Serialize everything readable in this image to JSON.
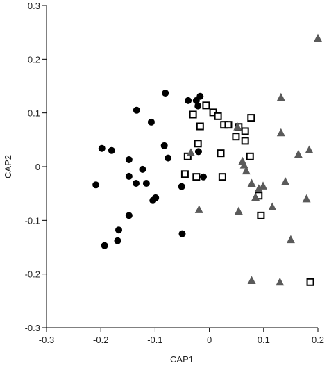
{
  "chart_data": {
    "type": "scatter",
    "x_label": "CAP1",
    "y_label": "CAP2",
    "xlim": [
      -0.3,
      0.2
    ],
    "xticks": [
      -0.3,
      -0.2,
      -0.1,
      0,
      0.1,
      0.2
    ],
    "ylim": [
      -0.3,
      0.3
    ],
    "yticks": [
      -0.3,
      -0.2,
      -0.1,
      0,
      0.1,
      0.2,
      0.3
    ],
    "grid": false,
    "series": [
      {
        "color": "#000000",
        "marker": "circle",
        "x": [
          -0.081,
          -0.134,
          -0.107,
          -0.198,
          -0.18,
          -0.148,
          -0.083,
          -0.076,
          -0.209,
          -0.148,
          -0.123,
          -0.135,
          -0.116,
          -0.099,
          -0.104,
          -0.148,
          -0.167,
          -0.169,
          -0.193,
          -0.051,
          -0.04,
          -0.05,
          -0.039,
          -0.024,
          -0.017,
          -0.021,
          -0.02,
          -0.011
        ],
        "y": [
          0.137,
          0.105,
          0.083,
          0.034,
          0.03,
          0.013,
          0.039,
          0.016,
          -0.034,
          -0.018,
          -0.005,
          -0.031,
          -0.031,
          -0.058,
          -0.063,
          -0.091,
          -0.118,
          -0.138,
          -0.147,
          -0.037,
          0.019,
          -0.125,
          0.123,
          0.123,
          0.131,
          0.113,
          0.028,
          -0.019
        ]
      },
      {
        "color": "#000000",
        "marker": "open-square",
        "x": [
          -0.006,
          -0.03,
          -0.017,
          0.007,
          0.016,
          0.027,
          0.035,
          0.054,
          0.049,
          0.066,
          0.066,
          0.077,
          0.075,
          -0.021,
          -0.04,
          0.021,
          -0.045,
          -0.024,
          0.024,
          0.091,
          0.095,
          0.186
        ],
        "y": [
          0.114,
          0.097,
          0.075,
          0.101,
          0.094,
          0.078,
          0.078,
          0.074,
          0.056,
          0.066,
          0.048,
          0.091,
          0.019,
          0.043,
          0.019,
          0.025,
          -0.014,
          -0.019,
          -0.019,
          -0.054,
          -0.091,
          -0.215
        ]
      },
      {
        "color": "#5a5a5a",
        "marker": "triangle",
        "x": [
          0.2,
          0.132,
          0.132,
          0.052,
          0.184,
          0.164,
          -0.034,
          -0.019,
          0.061,
          0.064,
          0.068,
          0.078,
          0.14,
          0.091,
          0.099,
          0.085,
          0.054,
          0.116,
          0.179,
          0.15,
          0.078,
          0.13
        ],
        "y": [
          0.239,
          0.129,
          0.063,
          0.074,
          0.031,
          0.023,
          0.026,
          -0.08,
          0.01,
          0.003,
          -0.008,
          -0.031,
          -0.028,
          -0.041,
          -0.036,
          -0.057,
          -0.083,
          -0.075,
          -0.06,
          -0.136,
          -0.212,
          -0.215
        ]
      }
    ]
  }
}
